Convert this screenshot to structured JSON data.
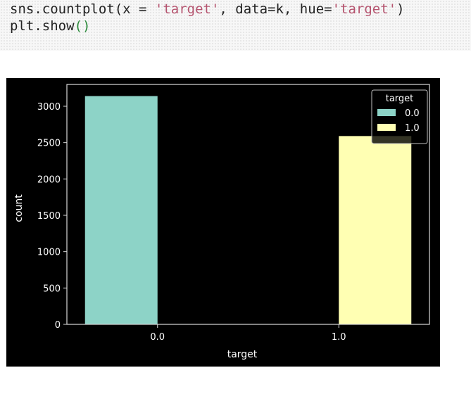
{
  "code": {
    "line1": {
      "prefix": "sns.countplot(x = ",
      "arg_x": "'target'",
      "mid": ", data=k, hue=",
      "arg_hue": "'target'",
      "suffix": ")"
    },
    "line2": {
      "prefix": "plt.show",
      "parens": "()"
    }
  },
  "chart_data": {
    "type": "bar",
    "categories": [
      "0.0",
      "1.0"
    ],
    "series": [
      {
        "name": "0.0",
        "values": [
          3140,
          0
        ],
        "color": "#8dd3c7"
      },
      {
        "name": "1.0",
        "values": [
          0,
          2590
        ],
        "color": "#ffffb3"
      }
    ],
    "xlabel": "target",
    "ylabel": "count",
    "ylim": [
      0,
      3300
    ],
    "yticks": [
      0,
      500,
      1000,
      1500,
      2000,
      2500,
      3000
    ],
    "legend": {
      "title": "target",
      "placement": "top-right"
    },
    "background": "#000000",
    "grid": false
  }
}
